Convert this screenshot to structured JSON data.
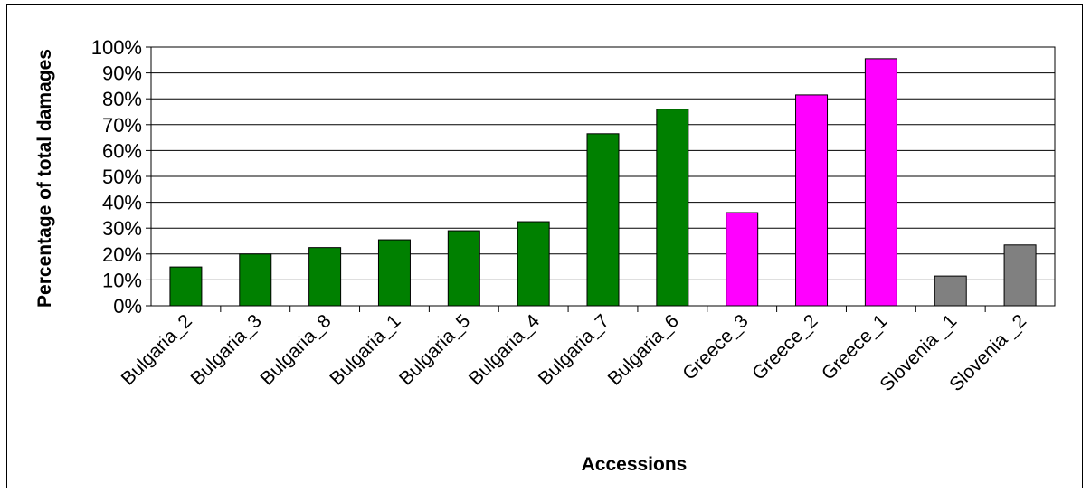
{
  "chart_data": {
    "type": "bar",
    "title": "",
    "xlabel": "Accessions",
    "ylabel": "Percentage of total damages",
    "ylim": [
      0,
      100
    ],
    "yticks": [
      "0%",
      "10%",
      "20%",
      "30%",
      "40%",
      "50%",
      "60%",
      "70%",
      "80%",
      "90%",
      "100%"
    ],
    "grid": true,
    "legend": "none",
    "categories": [
      "Bulgaria_2",
      "Bulgaria_3",
      "Bulgaria_8",
      "Bulgaria_1",
      "Bulgaria_5",
      "Bulgaria_4",
      "Bulgaria_7",
      "Bulgaria_6",
      "Greece_3",
      "Greece_2",
      "Greece_1",
      "Slovenia _1",
      "Slovenia _2"
    ],
    "values": [
      15,
      20,
      22.5,
      25.5,
      29,
      32.5,
      66.5,
      76,
      36,
      81.5,
      95.5,
      11.5,
      23.5
    ],
    "colors": [
      "#008000",
      "#008000",
      "#008000",
      "#008000",
      "#008000",
      "#008000",
      "#008000",
      "#008000",
      "#FF00FF",
      "#FF00FF",
      "#FF00FF",
      "#808080",
      "#808080"
    ]
  }
}
